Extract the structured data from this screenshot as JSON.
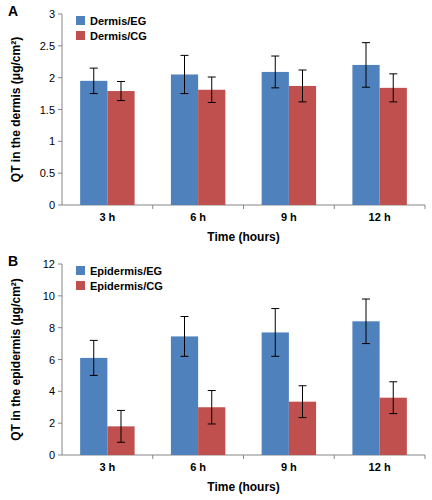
{
  "chart_data": [
    {
      "type": "bar",
      "title": "A",
      "x_label": "Time (hours)",
      "y_label": "QT in the dermis (μg/cm²)",
      "categories": [
        "3 h",
        "6 h",
        "9 h",
        "12 h"
      ],
      "series": [
        {
          "name": "Dermis/EG",
          "color": "#4f81bd",
          "values": [
            1.95,
            2.05,
            2.09,
            2.2
          ],
          "errors": [
            0.2,
            0.3,
            0.25,
            0.35
          ]
        },
        {
          "name": "Dermis/CG",
          "color": "#c0504d",
          "values": [
            1.79,
            1.81,
            1.87,
            1.84
          ],
          "errors": [
            0.15,
            0.2,
            0.25,
            0.22
          ]
        }
      ],
      "ylim": [
        0,
        3
      ],
      "yticks": [
        0,
        0.5,
        1,
        1.5,
        2,
        2.5,
        3
      ],
      "grid": false,
      "legend": "upper left"
    },
    {
      "type": "bar",
      "title": "B",
      "x_label": "Time (hours)",
      "y_label": "QT in the epidermis (μg/cm²)",
      "categories": [
        "3 h",
        "6 h",
        "9 h",
        "12 h"
      ],
      "series": [
        {
          "name": "Epidermis/EG",
          "color": "#4f81bd",
          "values": [
            6.1,
            7.45,
            7.7,
            8.4
          ],
          "errors": [
            1.1,
            1.25,
            1.5,
            1.4
          ]
        },
        {
          "name": "Epidermis/CG",
          "color": "#c0504d",
          "values": [
            1.8,
            3.0,
            3.35,
            3.6
          ],
          "errors": [
            1.0,
            1.05,
            1.0,
            1.0
          ]
        }
      ],
      "ylim": [
        0,
        12
      ],
      "yticks": [
        0,
        2,
        4,
        6,
        8,
        10,
        12
      ],
      "grid": false,
      "legend": "upper left"
    }
  ]
}
